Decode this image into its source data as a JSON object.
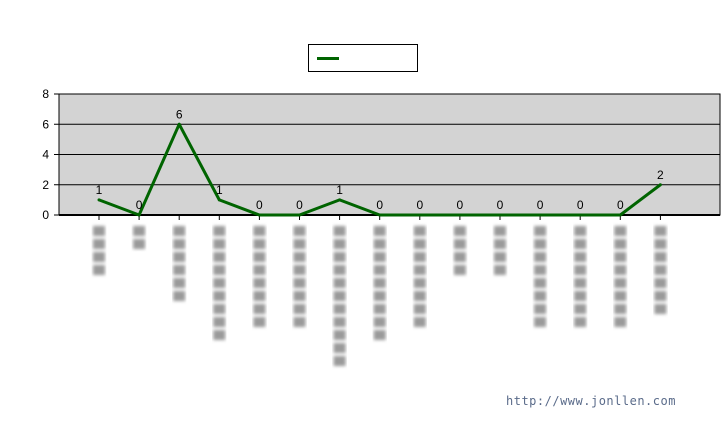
{
  "colors": {
    "line": "#006400",
    "plot_background": "#d3d3d3",
    "grid": "#000000"
  },
  "chart_data": {
    "type": "line",
    "title": "",
    "xlabel": "",
    "ylabel": "",
    "ylim": [
      0,
      8
    ],
    "yticks": [
      0,
      2,
      4,
      6,
      8
    ],
    "grid": true,
    "legend": "top-center",
    "categories": [
      "",
      "",
      "",
      "",
      "",
      "",
      "",
      "",
      "",
      "",
      "",
      "",
      "",
      "",
      ""
    ],
    "series": [
      {
        "name": "",
        "values": [
          1,
          0,
          6,
          1,
          0,
          0,
          1,
          0,
          0,
          0,
          0,
          0,
          0,
          0,
          2
        ]
      }
    ],
    "data_labels": true
  },
  "watermark": "http://www.jonllen.com"
}
